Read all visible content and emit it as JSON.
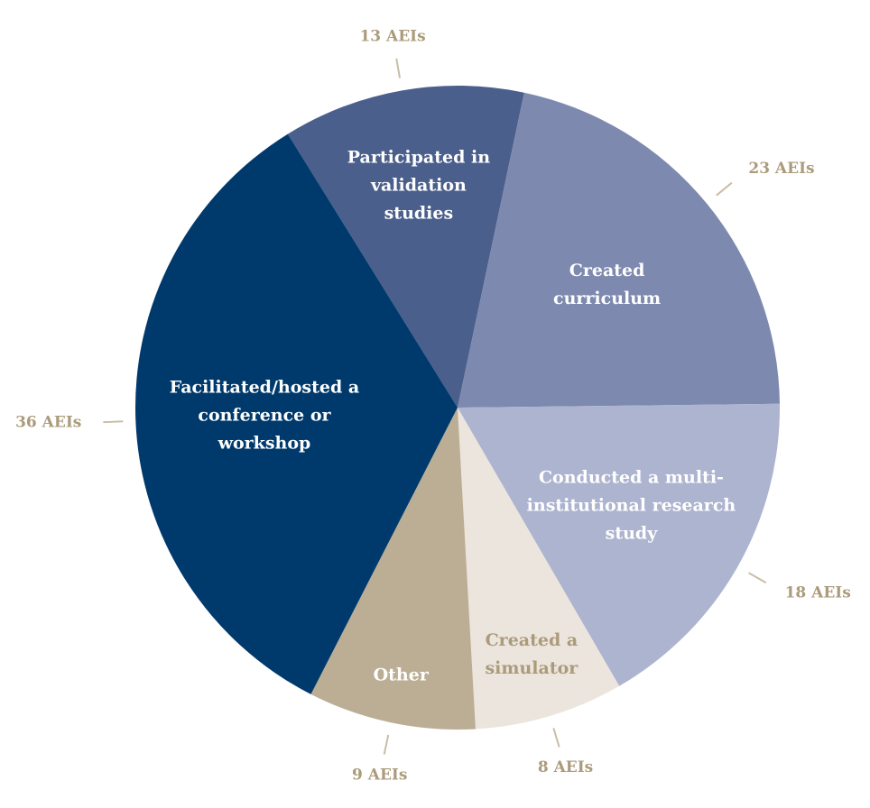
{
  "chart_data": {
    "type": "pie",
    "categories": [
      "Participated in validation studies",
      "Created curriculum",
      "Conducted a multi-institutional research study",
      "Created a simulator",
      "Other",
      "Facilitated/hosted a conference or workshop"
    ],
    "values": [
      13,
      23,
      18,
      8,
      9,
      36
    ],
    "value_labels": [
      "13 AEIs",
      "23 AEIs",
      "18 AEIs",
      "8 AEIs",
      "9 AEIs",
      "36 AEIs"
    ],
    "colors": [
      "#4a5f8b",
      "#7d89ae",
      "#adb4cf",
      "#ece5dd",
      "#bcae94",
      "#003a6d"
    ],
    "label_colors": [
      "#ffffff",
      "#ffffff",
      "#ffffff",
      "#ab9b7b",
      "#ffffff",
      "#ffffff"
    ]
  }
}
